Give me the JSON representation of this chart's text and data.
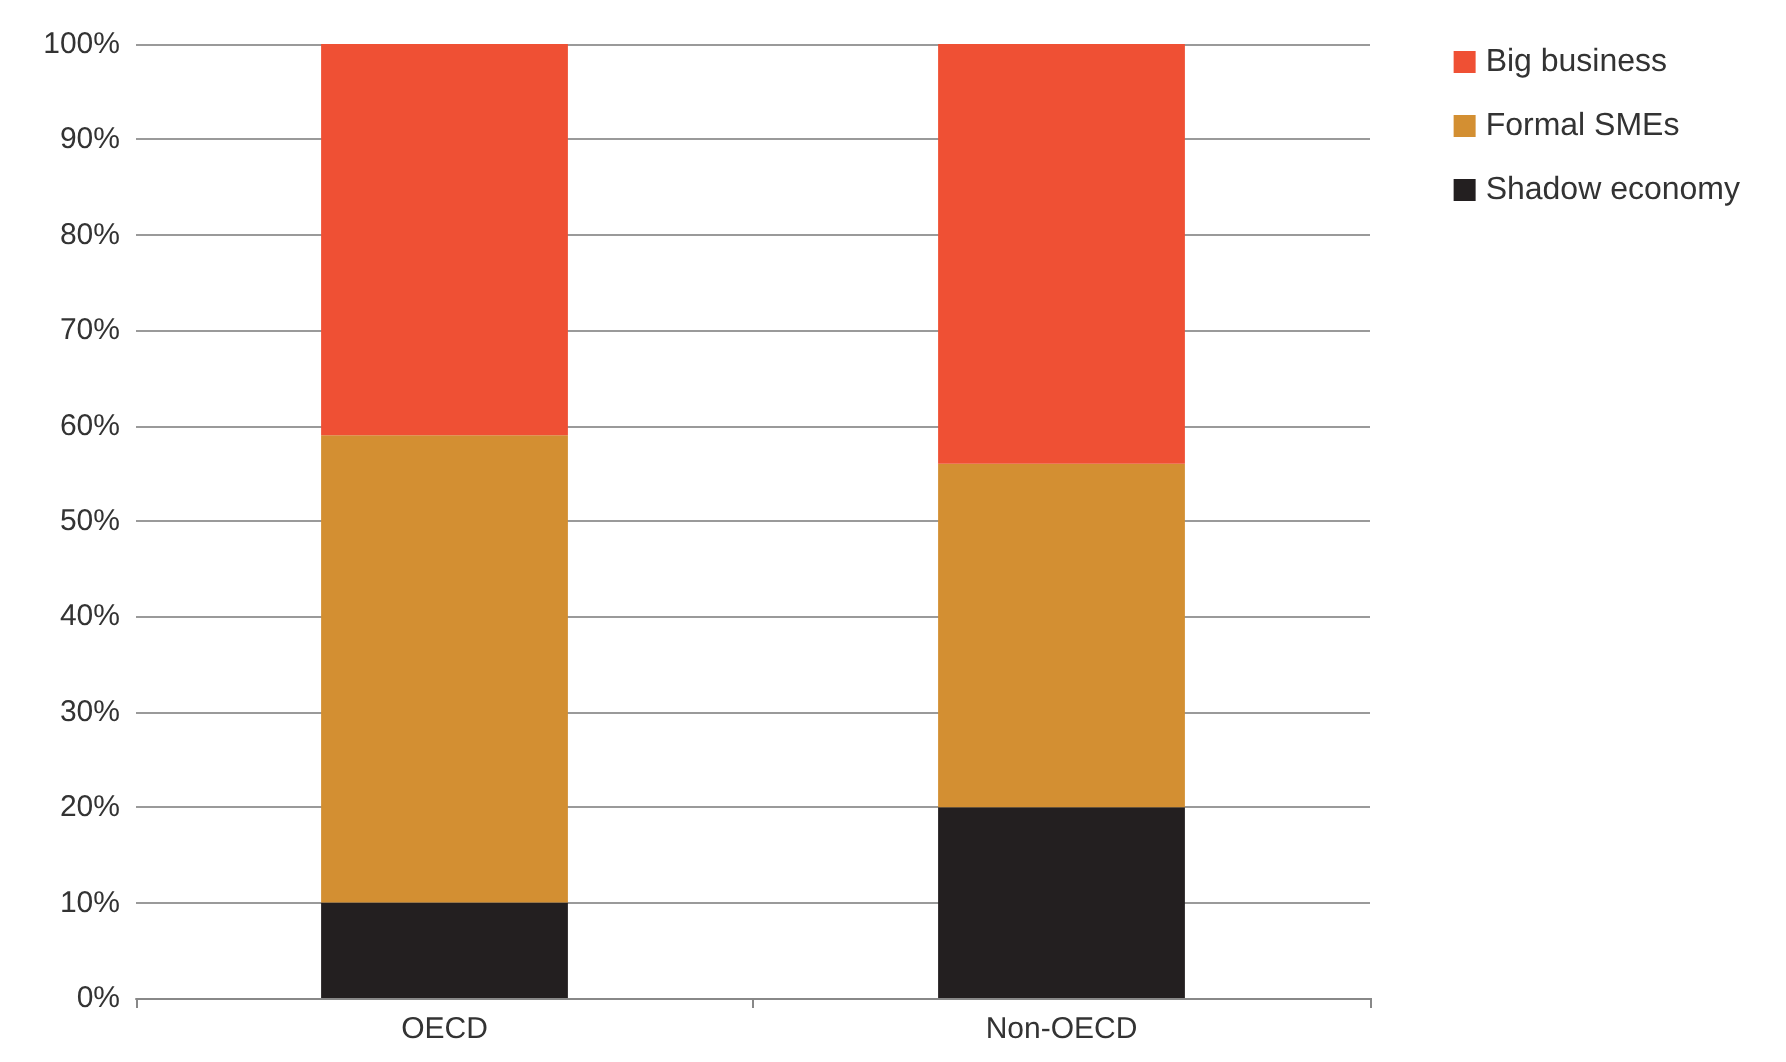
{
  "chart_data": {
    "type": "bar",
    "stacked": true,
    "categories": [
      "OECD",
      "Non-OECD"
    ],
    "series": [
      {
        "name": "Shadow economy",
        "color": "#231f20",
        "values": [
          10,
          20
        ]
      },
      {
        "name": "Formal SMEs",
        "color": "#d38f32",
        "values": [
          49,
          36
        ]
      },
      {
        "name": "Big business",
        "color": "#ef5034",
        "values": [
          41,
          44
        ]
      }
    ],
    "ylim": [
      0,
      100
    ],
    "yticks": [
      {
        "value": 0,
        "label": "0%"
      },
      {
        "value": 10,
        "label": "10%"
      },
      {
        "value": 20,
        "label": "20%"
      },
      {
        "value": 30,
        "label": "30%"
      },
      {
        "value": 40,
        "label": "40%"
      },
      {
        "value": 50,
        "label": "50%"
      },
      {
        "value": 60,
        "label": "60%"
      },
      {
        "value": 70,
        "label": "70%"
      },
      {
        "value": 80,
        "label": "80%"
      },
      {
        "value": 90,
        "label": "90%"
      },
      {
        "value": 100,
        "label": "100%"
      }
    ],
    "grid": "y",
    "legend": "top right"
  }
}
